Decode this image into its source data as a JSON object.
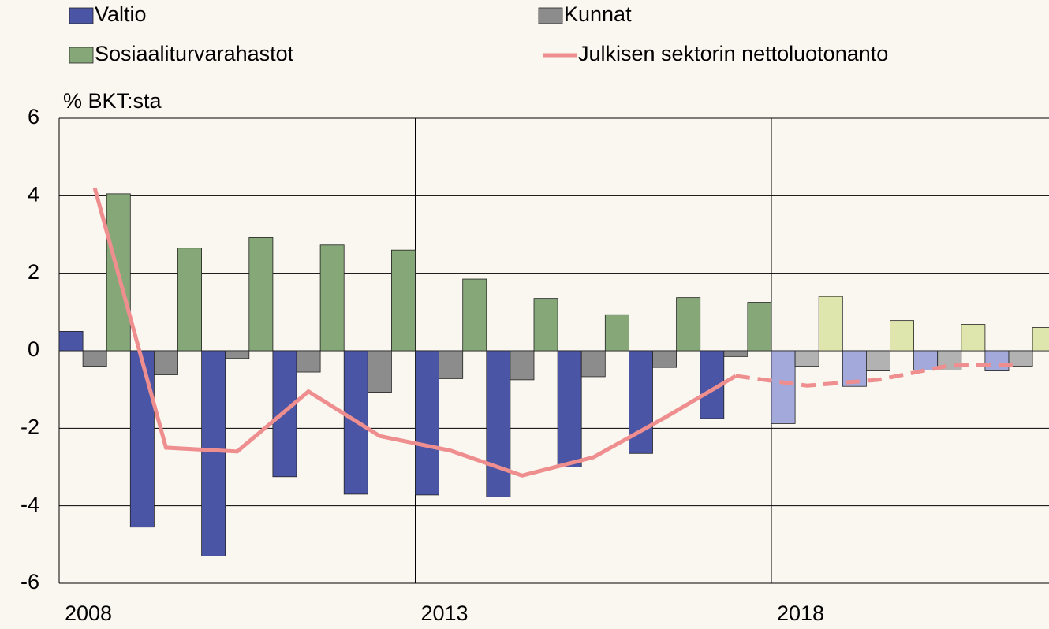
{
  "chart_data": {
    "type": "bar",
    "y_label": "% BKT:sta",
    "categories": [
      "2008",
      null,
      null,
      null,
      null,
      "2013",
      null,
      null,
      null,
      null,
      "2018",
      null,
      null,
      null
    ],
    "series": [
      {
        "name": "Valtio",
        "color": "#4b55a5",
        "forecast_color": "#a3a9da",
        "values": [
          0.5,
          -4.55,
          -5.3,
          -3.25,
          -3.7,
          -3.72,
          -3.77,
          -3.0,
          -2.65,
          -1.75,
          -1.88,
          -0.92,
          -0.5,
          -0.52
        ]
      },
      {
        "name": "Kunnat",
        "color": "#8c8c8c",
        "forecast_color": "#b2b2b2",
        "values": [
          -0.4,
          -0.62,
          -0.2,
          -0.55,
          -1.07,
          -0.72,
          -0.75,
          -0.67,
          -0.43,
          -0.15,
          -0.4,
          -0.52,
          -0.5,
          -0.4
        ]
      },
      {
        "name": "Sosiaaliturvarahastot",
        "color": "#86a878",
        "forecast_color": "#dfe6ad",
        "values": [
          4.05,
          2.65,
          2.92,
          2.73,
          2.6,
          1.85,
          1.35,
          0.93,
          1.37,
          1.25,
          1.4,
          0.78,
          0.68,
          0.6
        ]
      },
      {
        "name": "Julkisen sektorin nettoluotonanto",
        "type": "line",
        "color": "#ef8e8e",
        "values": [
          4.2,
          -2.5,
          -2.6,
          -1.05,
          -2.2,
          -2.58,
          -3.22,
          -2.75,
          -1.73,
          -0.65,
          -0.9,
          -0.75,
          -0.38,
          -0.37
        ]
      }
    ],
    "forecast_start": 10,
    "ylim": [
      -6,
      6
    ],
    "yticks": [
      -6,
      -4,
      -2,
      0,
      2,
      4,
      6
    ],
    "grid": true
  }
}
